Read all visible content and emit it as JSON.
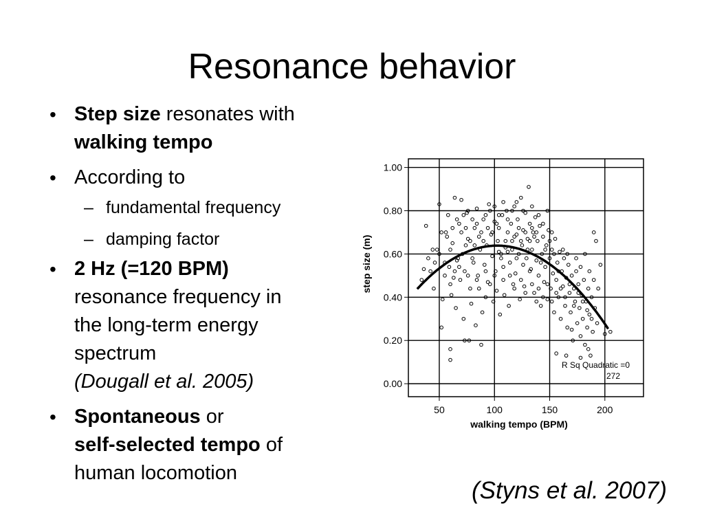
{
  "slide": {
    "title": "Resonance behavior",
    "citation": "(Styns et al. 2007)",
    "bullets": {
      "b1": {
        "bold1": "Step size",
        "text1": " resonates with",
        "bold2": "walking tempo"
      },
      "b2": {
        "text": "According to",
        "sub": [
          "fundamental frequency",
          "damping factor"
        ]
      },
      "b3": {
        "bold": "2 Hz (=120 BPM)",
        "l1": "resonance frequency in",
        "l2": "the long-term energy",
        "l3": "spectrum",
        "ref": "(Dougall et al. 2005)"
      },
      "b4": {
        "bold1": "Spontaneous",
        "text1": " or",
        "bold2": "self-selected tempo",
        "text2": " of",
        "l3": "human locomotion"
      }
    }
  },
  "chart_data": {
    "type": "scatter",
    "xlabel": "walking tempo (BPM)",
    "ylabel": "step size (m)",
    "xlim": [
      22,
      235
    ],
    "ylim": [
      -0.06,
      1.04
    ],
    "xticks": [
      50,
      100,
      150,
      200
    ],
    "yticks": [
      "0.00",
      "0.20",
      "0.40",
      "0.60",
      "0.80",
      "1.00"
    ],
    "grid": true,
    "annotation": [
      "R Sq Quadratic =0",
      "272"
    ],
    "fit": {
      "type": "quadratic",
      "x_range": [
        30,
        203
      ],
      "points": [
        [
          30,
          0.44
        ],
        [
          60,
          0.57
        ],
        [
          100,
          0.63
        ],
        [
          140,
          0.59
        ],
        [
          170,
          0.47
        ],
        [
          203,
          0.25
        ]
      ]
    },
    "points": [
      [
        38,
        0.73
      ],
      [
        42,
        0.52
      ],
      [
        46,
        0.56
      ],
      [
        50,
        0.83
      ],
      [
        52,
        0.7
      ],
      [
        55,
        0.5
      ],
      [
        58,
        0.78
      ],
      [
        60,
        0.62
      ],
      [
        62,
        0.65
      ],
      [
        63,
        0.49
      ],
      [
        64,
        0.86
      ],
      [
        66,
        0.57
      ],
      [
        68,
        0.74
      ],
      [
        70,
        0.85
      ],
      [
        71,
        0.6
      ],
      [
        73,
        0.52
      ],
      [
        75,
        0.79
      ],
      [
        76,
        0.67
      ],
      [
        78,
        0.44
      ],
      [
        80,
        0.58
      ],
      [
        82,
        0.72
      ],
      [
        84,
        0.81
      ],
      [
        85,
        0.5
      ],
      [
        87,
        0.62
      ],
      [
        88,
        0.7
      ],
      [
        90,
        0.76
      ],
      [
        91,
        0.55
      ],
      [
        93,
        0.64
      ],
      [
        94,
        0.47
      ],
      [
        95,
        0.83
      ],
      [
        97,
        0.69
      ],
      [
        98,
        0.59
      ],
      [
        100,
        0.75
      ],
      [
        101,
        0.52
      ],
      [
        103,
        0.66
      ],
      [
        104,
        0.72
      ],
      [
        106,
        0.6
      ],
      [
        107,
        0.78
      ],
      [
        108,
        0.48
      ],
      [
        110,
        0.63
      ],
      [
        111,
        0.8
      ],
      [
        112,
        0.7
      ],
      [
        114,
        0.56
      ],
      [
        115,
        0.74
      ],
      [
        116,
        0.66
      ],
      [
        118,
        0.82
      ],
      [
        119,
        0.51
      ],
      [
        120,
        0.69
      ],
      [
        121,
        0.76
      ],
      [
        122,
        0.6
      ],
      [
        124,
        0.86
      ],
      [
        125,
        0.64
      ],
      [
        126,
        0.71
      ],
      [
        127,
        0.45
      ],
      [
        128,
        0.79
      ],
      [
        129,
        0.58
      ],
      [
        130,
        0.67
      ],
      [
        131,
        0.91
      ],
      [
        132,
        0.74
      ],
      [
        133,
        0.53
      ],
      [
        134,
        0.62
      ],
      [
        135,
        0.7
      ],
      [
        136,
        0.42
      ],
      [
        137,
        0.77
      ],
      [
        138,
        0.57
      ],
      [
        139,
        0.66
      ],
      [
        140,
        0.5
      ],
      [
        141,
        0.73
      ],
      [
        142,
        0.36
      ],
      [
        143,
        0.6
      ],
      [
        144,
        0.68
      ],
      [
        145,
        0.47
      ],
      [
        146,
        0.54
      ],
      [
        147,
        0.64
      ],
      [
        148,
        0.39
      ],
      [
        149,
        0.71
      ],
      [
        150,
        0.58
      ],
      [
        151,
        0.44
      ],
      [
        152,
        0.62
      ],
      [
        153,
        0.51
      ],
      [
        154,
        0.33
      ],
      [
        155,
        0.67
      ],
      [
        156,
        0.48
      ],
      [
        157,
        0.56
      ],
      [
        158,
        0.4
      ],
      [
        159,
        0.61
      ],
      [
        160,
        0.3
      ],
      [
        161,
        0.52
      ],
      [
        162,
        0.45
      ],
      [
        163,
        0.58
      ],
      [
        164,
        0.36
      ],
      [
        165,
        0.49
      ],
      [
        166,
        0.26
      ],
      [
        167,
        0.55
      ],
      [
        168,
        0.42
      ],
      [
        169,
        0.33
      ],
      [
        170,
        0.5
      ],
      [
        171,
        0.2
      ],
      [
        172,
        0.44
      ],
      [
        173,
        0.38
      ],
      [
        174,
        0.52
      ],
      [
        175,
        0.28
      ],
      [
        176,
        0.46
      ],
      [
        177,
        0.35
      ],
      [
        178,
        0.22
      ],
      [
        179,
        0.41
      ],
      [
        180,
        0.3
      ],
      [
        181,
        0.48
      ],
      [
        182,
        0.18
      ],
      [
        183,
        0.38
      ],
      [
        184,
        0.26
      ],
      [
        185,
        0.44
      ],
      [
        186,
        0.32
      ],
      [
        187,
        0.13
      ],
      [
        188,
        0.4
      ],
      [
        189,
        0.24
      ],
      [
        190,
        0.7
      ],
      [
        191,
        0.35
      ],
      [
        192,
        0.66
      ],
      [
        193,
        0.28
      ],
      [
        45,
        0.44
      ],
      [
        48,
        0.62
      ],
      [
        53,
        0.39
      ],
      [
        57,
        0.68
      ],
      [
        61,
        0.41
      ],
      [
        65,
        0.35
      ],
      [
        69,
        0.48
      ],
      [
        72,
        0.3
      ],
      [
        74,
        0.64
      ],
      [
        77,
        0.2
      ],
      [
        79,
        0.37
      ],
      [
        83,
        0.27
      ],
      [
        86,
        0.44
      ],
      [
        89,
        0.33
      ],
      [
        92,
        0.4
      ],
      [
        96,
        0.46
      ],
      [
        99,
        0.38
      ],
      [
        102,
        0.43
      ],
      [
        105,
        0.32
      ],
      [
        109,
        0.41
      ],
      [
        113,
        0.36
      ],
      [
        117,
        0.46
      ],
      [
        123,
        0.39
      ],
      [
        52,
        0.26
      ],
      [
        60,
        0.16
      ],
      [
        60,
        0.11
      ],
      [
        73,
        0.2
      ],
      [
        88,
        0.18
      ],
      [
        36,
        0.53
      ],
      [
        40,
        0.58
      ],
      [
        44,
        0.62
      ],
      [
        50,
        0.6
      ],
      [
        55,
        0.56
      ],
      [
        59,
        0.54
      ],
      [
        67,
        0.58
      ],
      [
        81,
        0.56
      ],
      [
        34,
        0.48
      ],
      [
        156,
        0.14
      ],
      [
        165,
        0.13
      ],
      [
        170,
        0.25
      ],
      [
        178,
        0.12
      ],
      [
        185,
        0.16
      ],
      [
        200,
        0.23
      ],
      [
        205,
        0.24
      ],
      [
        196,
        0.55
      ],
      [
        104,
        0.61
      ],
      [
        106,
        0.58
      ],
      [
        110,
        0.66
      ],
      [
        112,
        0.61
      ],
      [
        116,
        0.62
      ],
      [
        118,
        0.68
      ],
      [
        122,
        0.72
      ],
      [
        124,
        0.66
      ],
      [
        128,
        0.7
      ],
      [
        130,
        0.62
      ],
      [
        132,
        0.66
      ],
      [
        134,
        0.72
      ],
      [
        136,
        0.68
      ],
      [
        138,
        0.7
      ],
      [
        86,
        0.68
      ],
      [
        90,
        0.66
      ],
      [
        94,
        0.72
      ],
      [
        98,
        0.7
      ],
      [
        102,
        0.74
      ],
      [
        70,
        0.7
      ],
      [
        74,
        0.72
      ],
      [
        78,
        0.66
      ],
      [
        82,
        0.64
      ],
      [
        120,
        0.58
      ],
      [
        126,
        0.55
      ],
      [
        132,
        0.52
      ],
      [
        142,
        0.56
      ],
      [
        146,
        0.62
      ],
      [
        150,
        0.66
      ],
      [
        152,
        0.7
      ],
      [
        154,
        0.6
      ],
      [
        158,
        0.52
      ],
      [
        162,
        0.62
      ],
      [
        166,
        0.6
      ],
      [
        174,
        0.58
      ],
      [
        178,
        0.54
      ],
      [
        182,
        0.6
      ],
      [
        186,
        0.52
      ],
      [
        190,
        0.48
      ],
      [
        194,
        0.44
      ],
      [
        160,
        0.44
      ],
      [
        164,
        0.4
      ],
      [
        168,
        0.46
      ],
      [
        172,
        0.36
      ],
      [
        176,
        0.42
      ],
      [
        180,
        0.38
      ],
      [
        184,
        0.34
      ],
      [
        188,
        0.3
      ],
      [
        140,
        0.44
      ],
      [
        144,
        0.4
      ],
      [
        148,
        0.46
      ],
      [
        152,
        0.38
      ],
      [
        156,
        0.42
      ],
      [
        56,
        0.7
      ],
      [
        62,
        0.72
      ],
      [
        66,
        0.76
      ],
      [
        72,
        0.78
      ],
      [
        76,
        0.8
      ],
      [
        80,
        0.76
      ],
      [
        84,
        0.74
      ],
      [
        92,
        0.78
      ],
      [
        96,
        0.8
      ],
      [
        100,
        0.82
      ],
      [
        104,
        0.78
      ],
      [
        108,
        0.84
      ],
      [
        112,
        0.76
      ],
      [
        116,
        0.8
      ],
      [
        120,
        0.84
      ],
      [
        126,
        0.8
      ],
      [
        134,
        0.82
      ],
      [
        140,
        0.78
      ],
      [
        144,
        0.74
      ],
      [
        148,
        0.8
      ],
      [
        60,
        0.46
      ],
      [
        64,
        0.52
      ],
      [
        68,
        0.54
      ],
      [
        76,
        0.5
      ],
      [
        84,
        0.48
      ],
      [
        92,
        0.52
      ],
      [
        100,
        0.5
      ],
      [
        108,
        0.54
      ],
      [
        114,
        0.5
      ],
      [
        118,
        0.44
      ],
      [
        124,
        0.48
      ],
      [
        128,
        0.42
      ],
      [
        134,
        0.46
      ],
      [
        138,
        0.38
      ]
    ]
  }
}
